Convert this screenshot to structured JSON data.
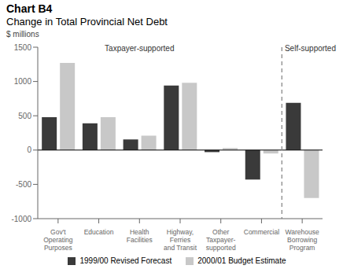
{
  "chart_data": {
    "type": "bar",
    "title": "Chart B4",
    "subtitle": "Change in Total Provincial Net Debt",
    "y_label": "$ millions",
    "categories": [
      "Gov't\nOperating\nPurposes",
      "Education",
      "Health\nFacilities",
      "Highway,\nFerries\nand Transit",
      "Other\nTaxpayer-\nsupported",
      "Commercial",
      "Warehouse\nBorrowing\nProgram"
    ],
    "series": [
      {
        "name": "1999/00 Revised Forecast",
        "color": "#3a3a3a",
        "values": [
          480,
          390,
          155,
          940,
          -30,
          -430,
          690
        ]
      },
      {
        "name": "2000/01 Budget Estimate",
        "color": "#c8c8c8",
        "values": [
          1270,
          480,
          210,
          980,
          30,
          -50,
          -700
        ]
      }
    ],
    "ylim": [
      -1000,
      1500
    ],
    "yticks": [
      -1000,
      -500,
      0,
      500,
      1000,
      1500
    ],
    "grid": false,
    "annotations": [
      {
        "text": "Taxpayer-supported",
        "x": 2.0,
        "y": 1420
      },
      {
        "text": "Self-supported",
        "x": 6.2,
        "y": 1420
      },
      {
        "x": 5.5,
        "line_style": "dashed"
      }
    ]
  }
}
